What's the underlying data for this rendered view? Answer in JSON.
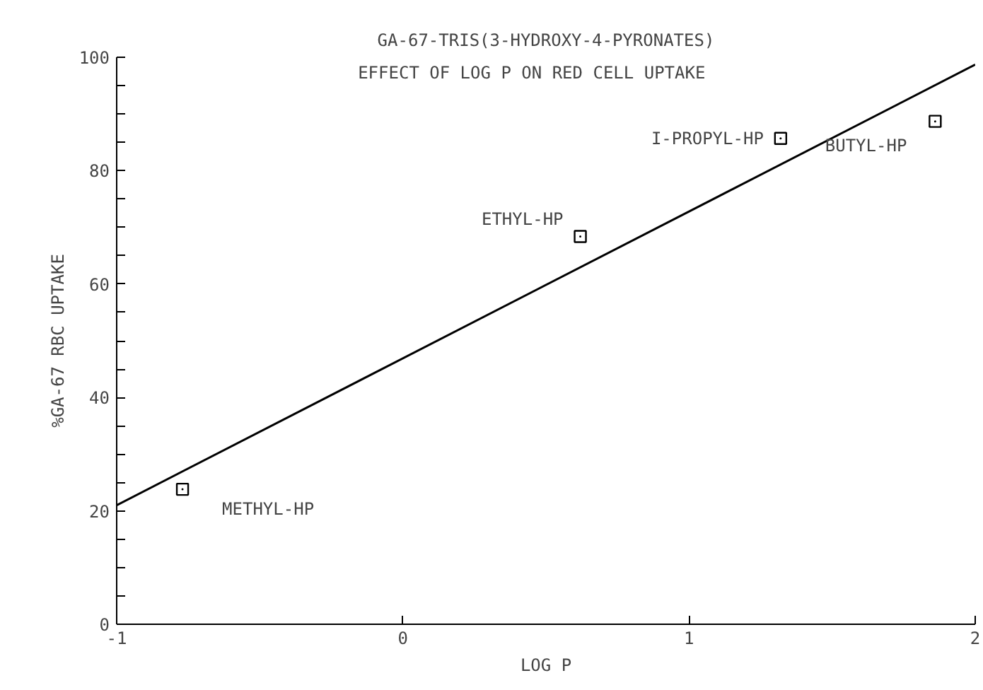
{
  "chart_data": {
    "type": "scatter",
    "title": "GA-67-TRIS(3-HYDROXY-4-PYRONATES)",
    "subtitle": "EFFECT OF LOG P ON RED CELL UPTAKE",
    "xlabel": "LOG P",
    "ylabel": "%GA-67 RBC UPTAKE",
    "x": [
      -0.77,
      0.62,
      1.32,
      1.86
    ],
    "series": [
      {
        "color": "#000000",
        "marker": "square",
        "values": [
          23.8,
          68.4,
          85.7,
          88.7
        ]
      },
      {
        "type": "line",
        "color": "#000000",
        "marker": "none",
        "line_style": "solid",
        "x": [
          -1,
          2
        ],
        "values": [
          21,
          98.7
        ]
      }
    ],
    "annotations": [
      {
        "text": "METHYL-HP",
        "x": -0.77,
        "y": 23.8
      },
      {
        "text": "ETHYL-HP",
        "x": 0.62,
        "y": 68.4
      },
      {
        "text": "I-PROPYL-HP",
        "x": 1.32,
        "y": 85.7
      },
      {
        "text": "BUTYL-HP",
        "x": 1.86,
        "y": 88.7
      }
    ],
    "xlim": [
      -1,
      2
    ],
    "xticks": [
      -1,
      0,
      1,
      2
    ],
    "ylim": [
      0,
      100
    ],
    "yticks": [
      0,
      {
        "value": 5,
        "label": null
      },
      {
        "value": 10,
        "label": null
      },
      {
        "value": 15,
        "label": null
      },
      20,
      {
        "value": 25,
        "label": null
      },
      {
        "value": 30,
        "label": null
      },
      {
        "value": 35,
        "label": null
      },
      40,
      {
        "value": 45,
        "label": null
      },
      {
        "value": 50,
        "label": null
      },
      {
        "value": 55,
        "label": null
      },
      60,
      {
        "value": 65,
        "label": null
      },
      {
        "value": 70,
        "label": null
      },
      {
        "value": 75,
        "label": null
      },
      80,
      {
        "value": 85,
        "label": null
      },
      {
        "value": 90,
        "label": null
      },
      {
        "value": 95,
        "label": null
      },
      100
    ],
    "grid": false
  }
}
